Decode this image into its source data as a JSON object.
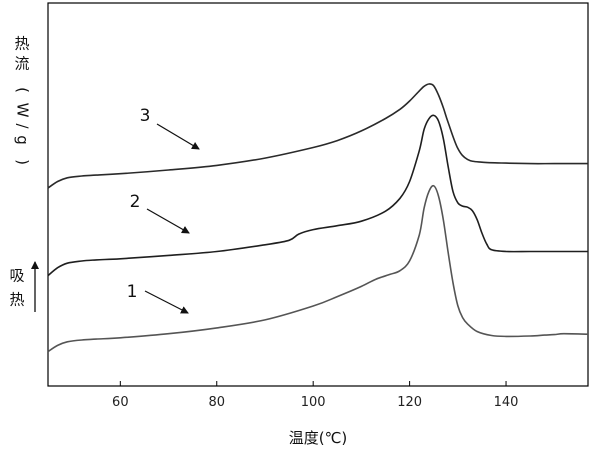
{
  "chart_data": {
    "type": "line",
    "xlabel": "温度(℃)",
    "ylabel": "热流(W/g)",
    "side_label": "吸热",
    "xlim": [
      45,
      157
    ],
    "x_ticks": [
      60,
      80,
      100,
      120,
      140
    ],
    "grid": false,
    "legend": "none",
    "series": [
      {
        "label": "3",
        "color": "#2a2a2a",
        "x": [
          45,
          47,
          49,
          52,
          55,
          60,
          70,
          80,
          90,
          100,
          105,
          110,
          115,
          118,
          120,
          122,
          123,
          124,
          125,
          126,
          127,
          128,
          130,
          132,
          135,
          140,
          145,
          150,
          157
        ],
        "y": [
          -0.26,
          -0.12,
          -0.04,
          0.0,
          0.02,
          0.05,
          0.13,
          0.23,
          0.39,
          0.62,
          0.77,
          0.98,
          1.25,
          1.45,
          1.63,
          1.85,
          1.95,
          2.0,
          1.96,
          1.76,
          1.48,
          1.16,
          0.6,
          0.36,
          0.3,
          0.28,
          0.27,
          0.27,
          0.27
        ]
      },
      {
        "label": "2",
        "color": "#1f1f1f",
        "x": [
          45,
          47,
          49,
          52,
          55,
          60,
          70,
          80,
          90,
          95,
          97,
          100,
          105,
          110,
          115,
          118,
          120,
          122,
          123,
          124,
          125,
          126,
          127,
          128,
          129,
          130,
          131,
          132,
          133,
          134,
          135,
          136,
          137,
          140,
          145,
          150,
          157
        ],
        "y": [
          -0.26,
          -0.12,
          -0.04,
          0.0,
          0.02,
          0.04,
          0.1,
          0.17,
          0.29,
          0.37,
          0.48,
          0.56,
          0.63,
          0.71,
          0.89,
          1.12,
          1.42,
          1.97,
          2.35,
          2.54,
          2.6,
          2.5,
          2.18,
          1.68,
          1.24,
          1.04,
          0.98,
          0.96,
          0.9,
          0.74,
          0.5,
          0.3,
          0.2,
          0.17,
          0.17,
          0.17,
          0.17
        ]
      },
      {
        "label": "1",
        "color": "#555555",
        "x": [
          45,
          47,
          49,
          52,
          55,
          60,
          70,
          80,
          90,
          100,
          105,
          110,
          113,
          116,
          118,
          120,
          122,
          123,
          124,
          125,
          126,
          127,
          128,
          129,
          130,
          131,
          132,
          134,
          137,
          140,
          145,
          148,
          150,
          152,
          157
        ],
        "y": [
          -0.26,
          -0.12,
          -0.04,
          0.0,
          0.02,
          0.05,
          0.14,
          0.27,
          0.45,
          0.76,
          0.97,
          1.2,
          1.36,
          1.47,
          1.55,
          1.77,
          2.35,
          2.95,
          3.32,
          3.45,
          3.22,
          2.68,
          1.95,
          1.28,
          0.77,
          0.5,
          0.36,
          0.19,
          0.1,
          0.08,
          0.09,
          0.11,
          0.12,
          0.14,
          0.13
        ]
      }
    ],
    "annotations": [
      {
        "text": "3",
        "target_series": "3",
        "target_x": 75
      },
      {
        "text": "2",
        "target_series": "2",
        "target_x": 75
      },
      {
        "text": "1",
        "target_series": "1",
        "target_x": 75
      }
    ]
  }
}
